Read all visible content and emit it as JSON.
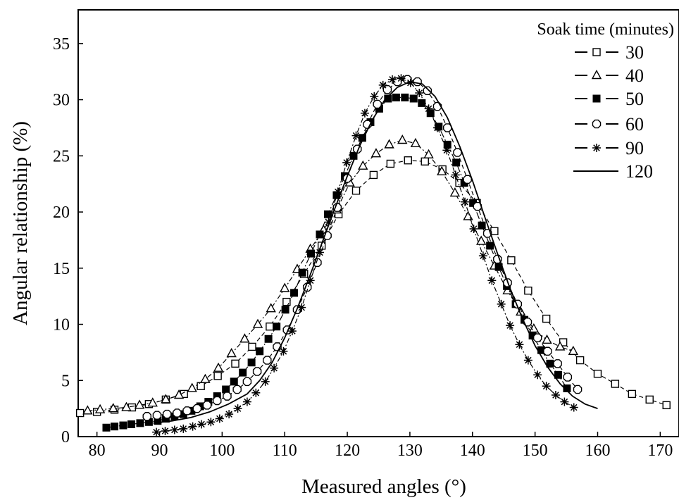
{
  "chart_data": {
    "type": "line",
    "xlabel": "Measured angles (°)",
    "ylabel": "Angular relationship (%)",
    "xlim": [
      77,
      173
    ],
    "ylim": [
      0,
      38
    ],
    "xticks": [
      80,
      90,
      100,
      110,
      120,
      130,
      140,
      150,
      160,
      170
    ],
    "yticks": [
      0,
      5,
      10,
      15,
      20,
      25,
      30,
      35
    ],
    "grid": false,
    "legend_position": "top-right",
    "legend_title": "Soak time (minutes)",
    "series": [
      {
        "name": "30",
        "marker": "open-square",
        "line": "dashed",
        "x": [
          77.3,
          80.0,
          82.8,
          85.6,
          88.3,
          91.0,
          93.9,
          96.6,
          99.3,
          102.1,
          104.8,
          107.6,
          110.3,
          113.1,
          115.9,
          118.6,
          121.4,
          124.2,
          126.9,
          129.7,
          132.4,
          135.2,
          137.9,
          140.7,
          143.5,
          146.2,
          148.9,
          151.8,
          154.5,
          157.2,
          160.0,
          162.8,
          165.5,
          168.3,
          171.0
        ],
        "y": [
          2.1,
          2.2,
          2.4,
          2.6,
          2.9,
          3.3,
          3.8,
          4.5,
          5.4,
          6.5,
          8.0,
          9.8,
          12.0,
          14.5,
          17.0,
          19.8,
          21.9,
          23.3,
          24.3,
          24.6,
          24.5,
          23.8,
          22.6,
          20.8,
          18.3,
          15.7,
          13.0,
          10.5,
          8.4,
          6.8,
          5.6,
          4.7,
          3.8,
          3.3,
          2.8
        ]
      },
      {
        "name": "40",
        "marker": "open-triangle",
        "line": "dash-dot",
        "x": [
          78.5,
          80.5,
          82.6,
          84.7,
          86.8,
          88.9,
          91.0,
          93.1,
          95.2,
          97.3,
          99.4,
          101.5,
          103.6,
          105.7,
          107.8,
          110.0,
          112.0,
          114.1,
          116.2,
          118.3,
          120.4,
          122.5,
          124.6,
          126.7,
          128.8,
          130.9,
          133.0,
          135.1,
          137.2,
          139.3,
          141.4,
          143.5,
          145.6,
          147.7,
          149.8,
          151.9,
          154.0,
          156.1
        ],
        "y": [
          2.3,
          2.4,
          2.5,
          2.6,
          2.8,
          3.0,
          3.3,
          3.7,
          4.3,
          5.1,
          6.1,
          7.4,
          8.7,
          10.0,
          11.4,
          13.2,
          14.9,
          16.7,
          18.4,
          20.2,
          22.6,
          24.1,
          25.2,
          26.0,
          26.4,
          26.1,
          25.1,
          23.6,
          21.7,
          19.6,
          17.4,
          15.2,
          13.0,
          11.1,
          9.6,
          8.6,
          8.0,
          7.6
        ]
      },
      {
        "name": "50",
        "marker": "filled-square",
        "line": "long-dash-dot",
        "x": [
          81.5,
          82.8,
          84.2,
          85.5,
          86.9,
          88.3,
          89.7,
          91.0,
          92.4,
          93.8,
          95.1,
          96.5,
          97.8,
          99.2,
          100.6,
          101.9,
          103.3,
          104.7,
          106.0,
          107.4,
          108.7,
          110.1,
          111.5,
          112.8,
          114.2,
          115.6,
          116.9,
          118.3,
          119.6,
          121.0,
          122.4,
          123.7,
          125.1,
          126.5,
          127.8,
          129.2,
          130.6,
          131.9,
          133.3,
          134.6,
          136.0,
          137.4,
          138.7,
          140.1,
          141.5,
          142.8,
          144.2,
          145.5,
          146.9,
          148.3,
          149.6,
          151.0,
          152.4,
          153.7,
          155.1
        ],
        "y": [
          0.8,
          0.9,
          1.0,
          1.1,
          1.2,
          1.3,
          1.4,
          1.6,
          1.8,
          2.0,
          2.3,
          2.7,
          3.1,
          3.6,
          4.2,
          4.9,
          5.7,
          6.6,
          7.6,
          8.7,
          9.8,
          11.3,
          12.8,
          14.6,
          16.3,
          18.0,
          19.8,
          21.5,
          23.2,
          25.0,
          26.6,
          28.0,
          29.2,
          30.1,
          30.2,
          30.2,
          30.1,
          29.7,
          28.8,
          27.6,
          26.0,
          24.4,
          22.6,
          20.8,
          18.8,
          17.0,
          15.1,
          13.4,
          11.8,
          10.4,
          9.0,
          7.7,
          6.5,
          5.5,
          4.3
        ]
      },
      {
        "name": "60",
        "marker": "open-hexagon",
        "line": "dashed",
        "x": [
          88.0,
          89.6,
          91.2,
          92.8,
          94.4,
          96.0,
          97.6,
          99.2,
          100.8,
          102.4,
          104.0,
          105.6,
          107.2,
          108.8,
          110.4,
          112.0,
          113.6,
          115.2,
          116.8,
          118.4,
          120.0,
          121.6,
          123.2,
          124.8,
          126.4,
          128.0,
          129.6,
          131.2,
          132.8,
          134.4,
          136.0,
          137.6,
          139.2,
          140.8,
          142.4,
          144.0,
          145.6,
          147.2,
          148.8,
          150.4,
          152.0,
          153.6,
          155.2,
          156.8
        ],
        "y": [
          1.8,
          1.9,
          2.0,
          2.1,
          2.3,
          2.5,
          2.8,
          3.2,
          3.6,
          4.2,
          4.9,
          5.8,
          6.8,
          8.0,
          9.5,
          11.3,
          13.3,
          15.5,
          17.9,
          20.4,
          23.0,
          25.6,
          27.8,
          29.6,
          30.9,
          31.6,
          31.8,
          31.6,
          30.8,
          29.4,
          27.5,
          25.3,
          22.9,
          20.5,
          18.1,
          15.8,
          13.7,
          11.8,
          10.2,
          8.8,
          7.6,
          6.5,
          5.3,
          4.2
        ]
      },
      {
        "name": "90",
        "marker": "asterisk",
        "line": "dash-dot",
        "x": [
          89.5,
          90.9,
          92.4,
          93.8,
          95.3,
          96.7,
          98.2,
          99.6,
          101.1,
          102.5,
          104.0,
          105.4,
          106.9,
          108.3,
          109.8,
          111.2,
          112.7,
          114.1,
          115.6,
          117.0,
          118.5,
          119.9,
          121.4,
          122.8,
          124.3,
          125.7,
          127.2,
          128.6,
          130.1,
          131.5,
          133.0,
          134.4,
          135.9,
          137.3,
          138.8,
          140.2,
          141.7,
          143.1,
          144.6,
          146.0,
          147.5,
          148.9,
          150.4,
          151.8,
          153.3,
          154.7,
          156.2
        ],
        "y": [
          0.4,
          0.5,
          0.6,
          0.7,
          0.9,
          1.1,
          1.3,
          1.6,
          2.0,
          2.5,
          3.1,
          3.9,
          4.9,
          6.1,
          7.6,
          9.4,
          11.5,
          13.9,
          16.4,
          19.1,
          21.8,
          24.4,
          26.8,
          28.8,
          30.3,
          31.3,
          31.8,
          31.9,
          31.5,
          30.6,
          29.2,
          27.5,
          25.5,
          23.3,
          20.9,
          18.5,
          16.1,
          13.9,
          11.8,
          9.9,
          8.2,
          6.8,
          5.5,
          4.5,
          3.7,
          3.1,
          2.6
        ]
      },
      {
        "name": "120",
        "marker": "none",
        "line": "solid",
        "x": [
          89.0,
          92.0,
          95.0,
          98.0,
          101.0,
          104.0,
          106.0,
          108.0,
          110.0,
          112.0,
          114.0,
          116.0,
          118.0,
          120.0,
          122.0,
          124.0,
          126.0,
          128.0,
          130.0,
          132.0,
          134.0,
          136.0,
          138.0,
          140.0,
          142.0,
          144.0,
          146.0,
          148.0,
          150.0,
          152.0,
          154.0,
          156.0,
          158.0,
          160.0
        ],
        "y": [
          1.2,
          1.4,
          1.7,
          2.2,
          2.9,
          3.8,
          5.0,
          6.6,
          8.8,
          11.4,
          14.3,
          17.3,
          20.3,
          23.2,
          25.9,
          28.2,
          30.0,
          31.1,
          31.6,
          31.4,
          30.3,
          28.4,
          25.8,
          22.8,
          19.5,
          16.3,
          13.2,
          10.5,
          8.1,
          6.2,
          4.7,
          3.6,
          2.9,
          2.5
        ]
      }
    ]
  }
}
